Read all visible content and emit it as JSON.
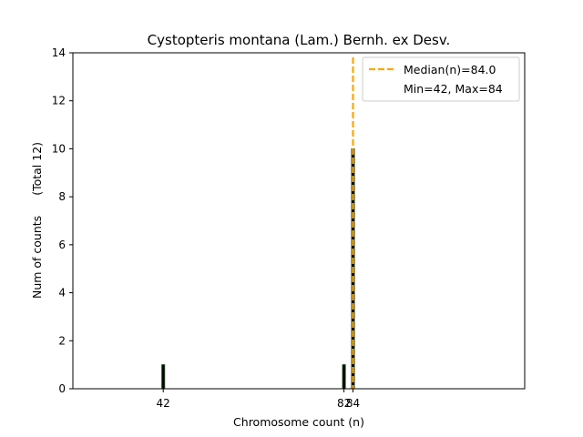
{
  "chart_data": {
    "type": "bar",
    "title": "Cystopteris montana (Lam.) Bernh. ex Desv.",
    "xlabel": "Chromosome count (n)",
    "ylabel": "Num of counts",
    "ylabel_total": "(Total 12)",
    "xlim": [
      22,
      122
    ],
    "ylim": [
      0,
      14
    ],
    "yticks": [
      0,
      2,
      4,
      6,
      8,
      10,
      12,
      14
    ],
    "xticks": [
      42,
      82,
      84
    ],
    "bars": [
      {
        "x": 42,
        "count": 1
      },
      {
        "x": 82,
        "count": 1
      },
      {
        "x": 84,
        "count": 10
      }
    ],
    "median_line": {
      "x": 84.0,
      "color": "#ffa500"
    },
    "legend": {
      "placement": "top-right",
      "entries": [
        "Median(n)=84.0",
        "Min=42, Max=84"
      ]
    },
    "colors": {
      "bar_edge": "#1f3d1f",
      "bar_fill": "#000000",
      "median": "#ffa500"
    }
  }
}
